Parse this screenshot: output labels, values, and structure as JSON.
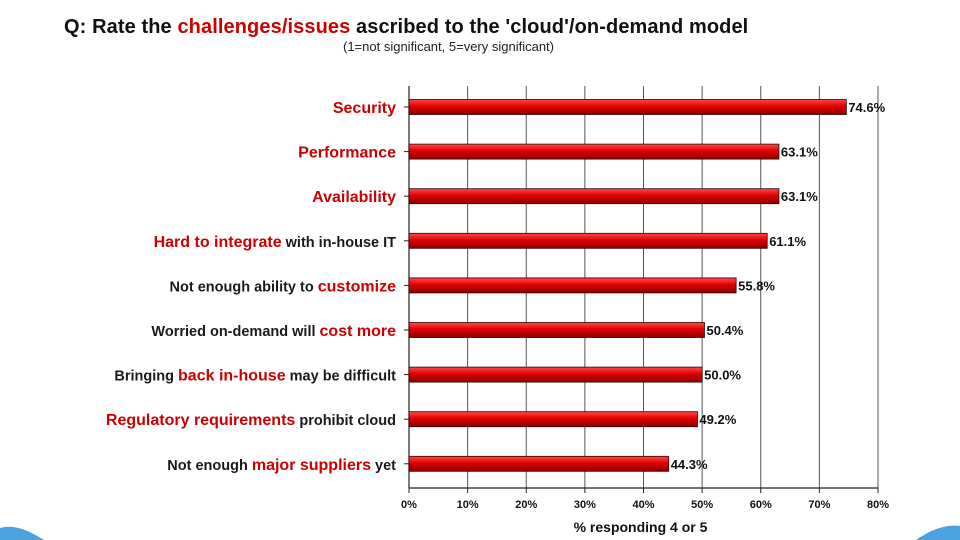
{
  "title": {
    "prefix": "Q: Rate the ",
    "highlight": "challenges/issues",
    "suffix": " ascribed to the 'cloud'/on-demand model"
  },
  "subtitle": "(1=not significant, 5=very significant)",
  "chart_data": {
    "type": "bar",
    "orientation": "horizontal",
    "categories": [
      "Security",
      "Performance",
      "Availability",
      "Hard to integrate with in-house IT",
      "Not enough ability to customize",
      "Worried on-demand will cost more",
      "Bringing back in-house may be difficult",
      "Regulatory requirements prohibit cloud",
      "Not enough major suppliers yet"
    ],
    "category_labels": [
      {
        "pre": "",
        "hl": "Security",
        "post": ""
      },
      {
        "pre": "",
        "hl": "Performance",
        "post": ""
      },
      {
        "pre": "",
        "hl": "Availability",
        "post": ""
      },
      {
        "pre": "",
        "hl": "Hard to integrate",
        "post": " with in-house IT"
      },
      {
        "pre": "Not enough ability to ",
        "hl": "customize",
        "post": ""
      },
      {
        "pre": "Worried on-demand will ",
        "hl": "cost more",
        "post": ""
      },
      {
        "pre": "Bringing ",
        "hl": "back in-house",
        "post": " may be difficult"
      },
      {
        "pre": "",
        "hl": "Regulatory requirements",
        "post": " prohibit cloud"
      },
      {
        "pre": "Not enough ",
        "hl": "major suppliers",
        "post": " yet"
      }
    ],
    "values": [
      74.6,
      63.1,
      63.1,
      61.1,
      55.8,
      50.4,
      50.0,
      49.2,
      44.3
    ],
    "value_labels": [
      "74.6%",
      "63.1%",
      "63.1%",
      "61.1%",
      "55.8%",
      "50.4%",
      "50.0%",
      "49.2%",
      "44.3%"
    ],
    "xlim": [
      0,
      80
    ],
    "xticks": [
      0,
      10,
      20,
      30,
      40,
      50,
      60,
      70,
      80
    ],
    "xtick_labels": [
      "0%",
      "10%",
      "20%",
      "30%",
      "40%",
      "50%",
      "60%",
      "70%",
      "80%"
    ],
    "xlabel": "% responding 4 or 5",
    "grid": "vertical",
    "colors": {
      "bar": "#e00000",
      "bar_highlight": "#ff4a4a",
      "bar_dark": "#8a0000",
      "label_highlight": "#cc0000",
      "grid": "#555555"
    }
  },
  "decoration": {
    "wave_color": "#4aa3df"
  }
}
